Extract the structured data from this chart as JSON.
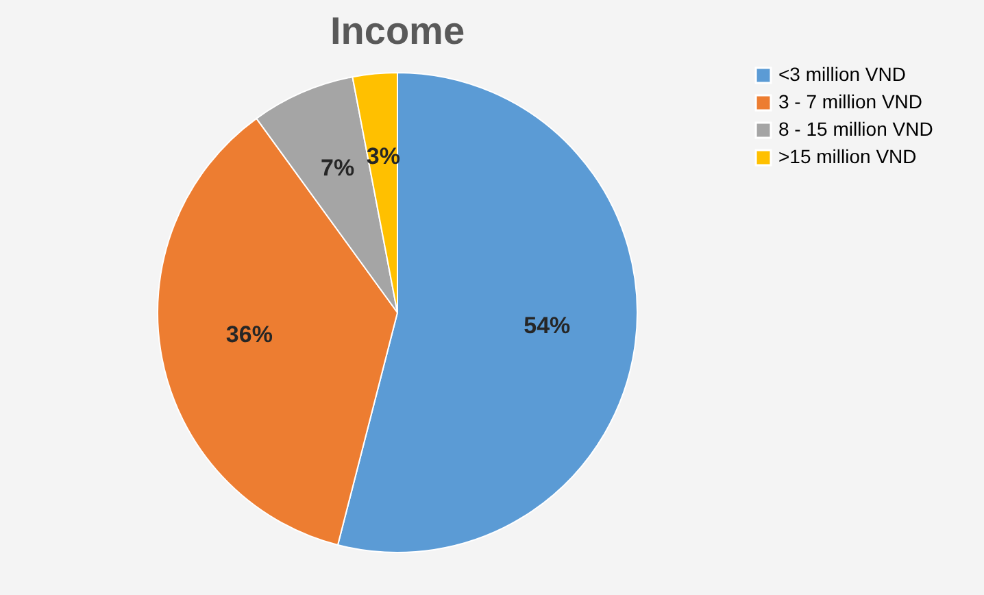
{
  "chart_data": {
    "type": "pie",
    "title": "Income",
    "categories": [
      "<3 million VND",
      "3 - 7 million VND",
      "8 - 15 million VND",
      ">15 million VND"
    ],
    "values": [
      54,
      36,
      7,
      3
    ],
    "colors": [
      "#5b9bd5",
      "#ed7d31",
      "#a5a5a5",
      "#ffc000"
    ],
    "value_labels": [
      "54%",
      "36%",
      "7%",
      "3%"
    ],
    "legend": "right"
  }
}
